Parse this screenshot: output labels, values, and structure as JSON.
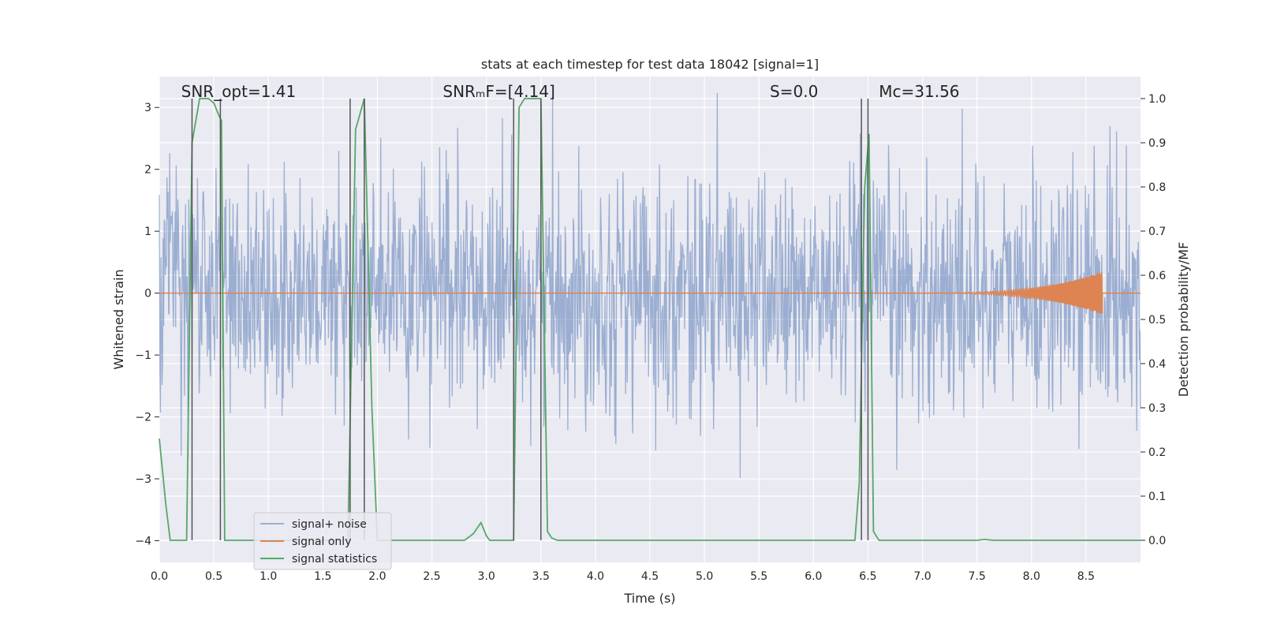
{
  "chart_data": {
    "type": "line",
    "title": "stats at each timestep for test data 18042 [signal=1]",
    "xlabel": "Time (s)",
    "ylabel": "Whitened strain",
    "y2label": "Detection probability/MF",
    "xlim": [
      0,
      9
    ],
    "ylim": [
      -4.35,
      3.5
    ],
    "y2lim": [
      -0.05,
      1.05
    ],
    "xticks": [
      0.0,
      0.5,
      1.0,
      1.5,
      2.0,
      2.5,
      3.0,
      3.5,
      4.0,
      4.5,
      5.0,
      5.5,
      6.0,
      6.5,
      7.0,
      7.5,
      8.0,
      8.5
    ],
    "xtick_labels": [
      "0.0",
      "0.5",
      "1.0",
      "1.5",
      "2.0",
      "2.5",
      "3.0",
      "3.5",
      "4.0",
      "4.5",
      "5.0",
      "5.5",
      "6.0",
      "6.5",
      "7.0",
      "7.5",
      "8.0",
      "8.5"
    ],
    "yticks": [
      -4,
      -3,
      -2,
      -1,
      0,
      1,
      2,
      3
    ],
    "ytick_labels": [
      "−4",
      "−3",
      "−2",
      "−1",
      "0",
      "1",
      "2",
      "3"
    ],
    "y2ticks": [
      0.0,
      0.1,
      0.2,
      0.3,
      0.4,
      0.5,
      0.6,
      0.7,
      0.8,
      0.9,
      1.0
    ],
    "y2tick_labels": [
      "0.0",
      "0.1",
      "0.2",
      "0.3",
      "0.4",
      "0.5",
      "0.6",
      "0.7",
      "0.8",
      "0.9",
      "1.0"
    ],
    "grid": true,
    "legend_position": "lower-left",
    "annotations": [
      {
        "text": "SNR_opt=1.41",
        "x": 0.2
      },
      {
        "text": "SNRₘF=[4.14]",
        "x": 2.6
      },
      {
        "text": "S=0.0",
        "x": 5.6
      },
      {
        "text": "Mᴄ=31.56",
        "x": 6.6
      }
    ],
    "series": [
      {
        "name": "signal+ noise",
        "color": "#4c72b0",
        "opacity": 0.5,
        "axis": "left",
        "noise_std": 0.95,
        "noise_points": 1800
      },
      {
        "name": "signal only",
        "color": "#dd8452",
        "axis": "left",
        "chirp": {
          "start": 6.5,
          "end": 8.65,
          "peak_amplitude": 0.35,
          "start_freq_hz": 30,
          "end_freq_hz": 120
        }
      },
      {
        "name": "signal statistics",
        "color": "#55a868",
        "axis": "right",
        "x": [
          0.0,
          0.06,
          0.1,
          0.2,
          0.25,
          0.3,
          0.37,
          0.45,
          0.5,
          0.55,
          0.57,
          0.6,
          0.62,
          0.7,
          1.5,
          1.65,
          1.73,
          1.8,
          1.88,
          1.95,
          2.0,
          2.1,
          2.8,
          2.88,
          2.95,
          3.0,
          3.03,
          3.15,
          3.25,
          3.3,
          3.35,
          3.45,
          3.5,
          3.56,
          3.6,
          3.65,
          3.8,
          6.3,
          6.38,
          6.42,
          6.47,
          6.51,
          6.55,
          6.6,
          6.65,
          7.5,
          7.57,
          7.65,
          9.0
        ],
        "values": [
          0.23,
          0.08,
          0.0,
          0.0,
          0.0,
          0.9,
          1.0,
          1.0,
          0.99,
          0.96,
          0.95,
          0.0,
          0.0,
          0.0,
          0.0,
          0.0,
          0.0,
          0.93,
          1.0,
          0.3,
          0.0,
          0.0,
          0.0,
          0.015,
          0.04,
          0.01,
          0.0,
          0.0,
          0.0,
          0.98,
          1.0,
          1.0,
          1.0,
          0.02,
          0.005,
          0.0,
          0.0,
          0.0,
          0.0,
          0.13,
          0.8,
          0.92,
          0.02,
          0.0,
          0.0,
          0.0,
          0.002,
          0.0,
          0.0
        ]
      }
    ],
    "vlines": [
      0.3,
      0.56,
      1.75,
      1.88,
      3.25,
      3.5,
      6.44,
      6.5
    ]
  },
  "colors": {
    "plot_background": "#eaeaf2",
    "grid": "#ffffff",
    "vline": "#555555"
  }
}
